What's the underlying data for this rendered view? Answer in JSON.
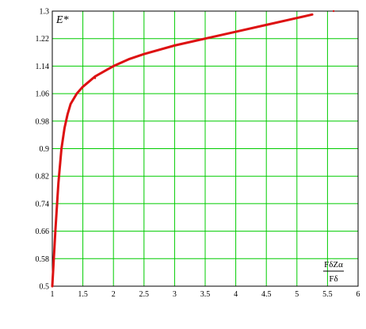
{
  "chart_data": {
    "type": "line",
    "title": "",
    "ylabel": "E*",
    "xlabel_numerator": "FδZα",
    "xlabel_denominator": "Fδ",
    "xlim": [
      1,
      6
    ],
    "ylim": [
      0.5,
      1.3
    ],
    "x_ticks": [
      1,
      1.5,
      2,
      2.5,
      3,
      3.5,
      4,
      4.5,
      5,
      5.5,
      6
    ],
    "x_tick_labels": [
      "1",
      "1.5",
      "2",
      "2.5",
      "3",
      "3.5",
      "4",
      "4.5",
      "5",
      "5.5",
      "6"
    ],
    "y_ticks": [
      0.5,
      0.58,
      0.66,
      0.74,
      0.82,
      0.9,
      0.98,
      1.06,
      1.14,
      1.22,
      1.3
    ],
    "y_tick_labels": [
      "0.5",
      "0.58",
      "0.66",
      "0.74",
      "0.82",
      "0.9",
      "0.98",
      "1.06",
      "1.14",
      "1.22",
      "1.3"
    ],
    "grid": true,
    "colors": {
      "grid": "#00cc00",
      "line": "#dd1111",
      "axes": "#000000"
    },
    "series": [
      {
        "x": [
          1.0,
          1.05,
          1.1,
          1.15,
          1.2,
          1.25,
          1.3,
          1.4,
          1.5,
          1.6,
          1.7,
          1.8,
          1.9,
          2.0,
          2.25,
          2.5,
          3.0,
          3.5,
          4.0,
          4.5,
          5.0,
          5.25
        ],
        "y": [
          0.5,
          0.66,
          0.8,
          0.9,
          0.96,
          1.0,
          1.03,
          1.06,
          1.08,
          1.095,
          1.11,
          1.12,
          1.13,
          1.14,
          1.16,
          1.175,
          1.2,
          1.22,
          1.24,
          1.26,
          1.28,
          1.29
        ]
      }
    ],
    "markers": [
      {
        "x": 1.7,
        "y": 1.105
      },
      {
        "x": 5.6,
        "y": 1.3
      }
    ]
  }
}
